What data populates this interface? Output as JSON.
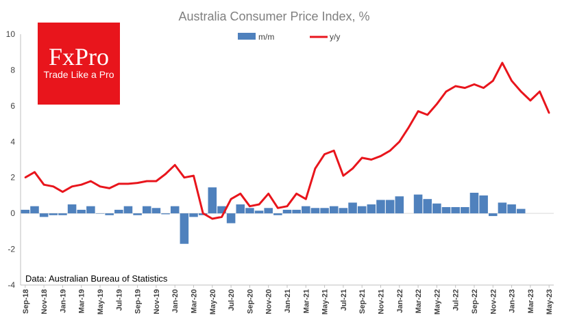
{
  "logo": {
    "brand": "FxPro",
    "tagline": "Trade Like a Pro",
    "background": "#e8151c"
  },
  "chart_data": {
    "type": "bar+line",
    "title": "Australia Consumer  Price Index, %",
    "source": "Data: Australian Bureau of Statistics",
    "ylim": [
      -4,
      10
    ],
    "yticks": [
      -4,
      -2,
      0,
      2,
      4,
      6,
      8,
      10
    ],
    "grid": false,
    "legend_position": "top-center",
    "x_tick_labels": [
      "Sep-18",
      "Nov-18",
      "Jan-19",
      "Mar-19",
      "May-19",
      "Jul-19",
      "Sep-19",
      "Nov-19",
      "Jan-20",
      "Mar-20",
      "May-20",
      "Jul-20",
      "Sep-20",
      "Nov-20",
      "Jan-21",
      "Mar-21",
      "May-21",
      "Jul-21",
      "Sep-21",
      "Nov-21",
      "Jan-22",
      "Mar-22",
      "May-22",
      "Jul-22",
      "Sep-22",
      "Nov-22",
      "Jan-23",
      "Mar-23",
      "May-23"
    ],
    "series": [
      {
        "name": "m/m",
        "type": "bar",
        "color": "#4f81bd",
        "values": [
          0.2,
          0.4,
          -0.2,
          -0.1,
          -0.1,
          0.5,
          0.2,
          0.4,
          0.0,
          -0.1,
          0.2,
          0.4,
          -0.1,
          0.4,
          0.3,
          -0.05,
          0.4,
          -1.7,
          -0.2,
          -0.1,
          1.45,
          0.4,
          -0.55,
          0.5,
          0.3,
          0.15,
          0.3,
          -0.1,
          0.2,
          0.2,
          0.4,
          0.3,
          0.3,
          0.4,
          0.3,
          0.6,
          0.4,
          0.5,
          0.75,
          0.75,
          0.95,
          null,
          1.05,
          0.8,
          0.55,
          0.35,
          0.35,
          0.35,
          1.15,
          1.0,
          -0.15,
          0.6,
          0.5,
          0.25
        ]
      },
      {
        "name": "y/y",
        "type": "line",
        "color": "#e8151c",
        "values": [
          2.0,
          2.3,
          1.6,
          1.5,
          1.2,
          1.5,
          1.6,
          1.8,
          1.5,
          1.4,
          1.65,
          1.65,
          1.7,
          1.8,
          1.8,
          2.2,
          2.7,
          2.0,
          2.1,
          0.0,
          -0.3,
          -0.2,
          0.8,
          1.1,
          0.4,
          0.5,
          1.1,
          0.3,
          0.4,
          1.1,
          0.8,
          2.5,
          3.3,
          3.5,
          2.1,
          2.5,
          3.1,
          3.0,
          3.2,
          3.5,
          4.0,
          4.8,
          5.7,
          5.5,
          6.1,
          6.8,
          7.1,
          7.0,
          7.2,
          7.0,
          7.4,
          8.4,
          7.4,
          6.8,
          6.3,
          6.8,
          5.6
        ]
      }
    ]
  }
}
